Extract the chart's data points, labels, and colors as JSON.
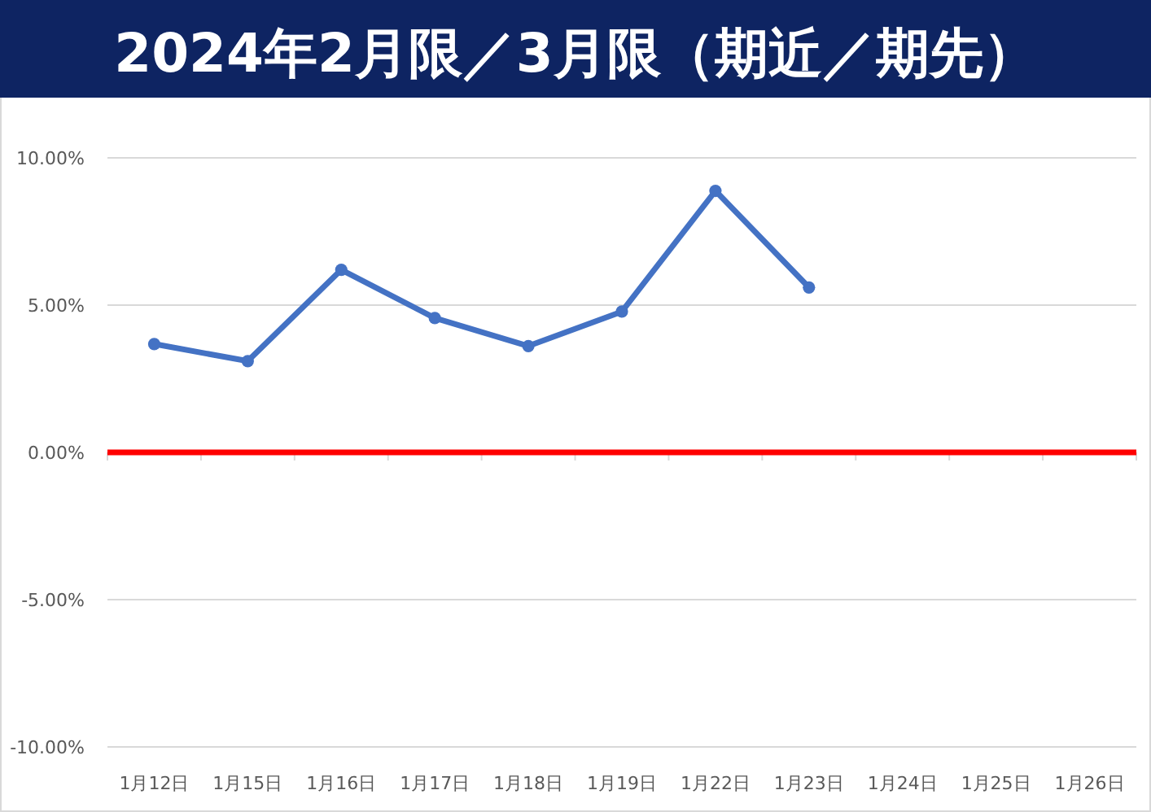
{
  "chart_data": {
    "type": "line",
    "title": "2024年2月限／3月限（期近／期先）",
    "categories": [
      "1月12日",
      "1月15日",
      "1月16日",
      "1月17日",
      "1月18日",
      "1月19日",
      "1月22日",
      "1月23日",
      "1月24日",
      "1月25日",
      "1月26日"
    ],
    "series": [
      {
        "color": "#4472c4",
        "values": [
          3.68,
          3.1,
          6.2,
          4.56,
          3.61,
          4.78,
          8.88,
          5.6,
          null,
          null,
          null
        ]
      }
    ],
    "ylim": [
      -10,
      10
    ],
    "yticks": [
      {
        "value": -10,
        "label": "-10.00%"
      },
      {
        "value": -5,
        "label": "-5.00%"
      },
      {
        "value": 0,
        "label": "0.00%"
      },
      {
        "value": 5,
        "label": "5.00%"
      },
      {
        "value": 10,
        "label": "10.00%"
      }
    ],
    "ref_lines": [
      {
        "axis": "y",
        "value": 0,
        "color": "#ff0000",
        "line_style": "solid"
      }
    ],
    "grid": "y",
    "marker": "circle",
    "line_style": "solid"
  }
}
